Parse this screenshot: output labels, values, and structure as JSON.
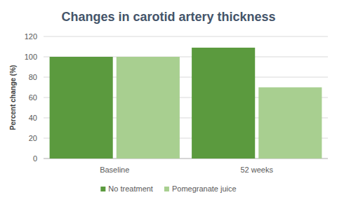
{
  "chart_data": {
    "type": "bar",
    "title": "Changes in carotid artery thickness",
    "y_label": "Percent change (%)",
    "categories": [
      "Baseline",
      "52 weeks"
    ],
    "series": [
      {
        "name": "No treatment",
        "color": "#5b9a3e",
        "values": [
          100,
          109
        ]
      },
      {
        "name": "Pomegranate juice",
        "color": "#a8cf90",
        "values": [
          100,
          70
        ]
      }
    ],
    "ylim": [
      0,
      120
    ],
    "yticks": [
      0,
      20,
      40,
      60,
      80,
      100,
      120
    ],
    "grid": true,
    "legend": "bottom"
  }
}
